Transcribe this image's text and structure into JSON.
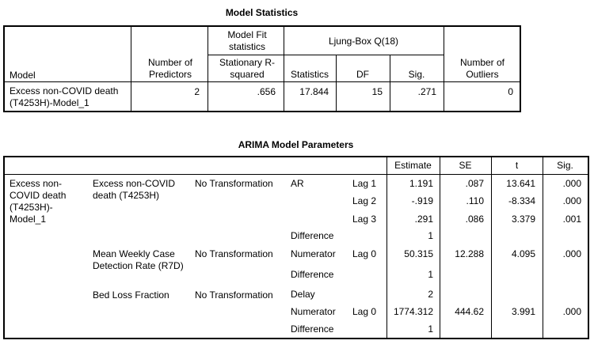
{
  "model_statistics": {
    "title": "Model Statistics",
    "headers": {
      "model": "Model",
      "predictors": "Number of Predictors",
      "fit_group": "Model Fit statistics",
      "r2": "Stationary R-squared",
      "ljung_group": "Ljung-Box Q(18)",
      "statistics": "Statistics",
      "df": "DF",
      "sig": "Sig.",
      "outliers": "Number of Outliers"
    },
    "row": {
      "model": "Excess non-COVID death (T4253H)-Model_1",
      "predictors": "2",
      "r2": ".656",
      "statistics": "17.844",
      "df": "15",
      "sig": ".271",
      "outliers": "0"
    }
  },
  "arima": {
    "title": "ARIMA Model Parameters",
    "headers": {
      "estimate": "Estimate",
      "se": "SE",
      "t": "t",
      "sig": "Sig."
    },
    "model": "Excess non-COVID death (T4253H)-Model_1",
    "vars": [
      {
        "name": "Excess non-COVID death (T4253H)",
        "transform": "No Transformation"
      },
      {
        "name": "Mean Weekly Case Detection Rate (R7D)",
        "transform": "No Transformation"
      },
      {
        "name": "Bed Loss Fraction",
        "transform": "No Transformation"
      }
    ],
    "rows": [
      {
        "type": "AR",
        "lag": "Lag 1",
        "estimate": "1.191",
        "se": ".087",
        "t": "13.641",
        "sig": ".000"
      },
      {
        "type": "",
        "lag": "Lag 2",
        "estimate": "-.919",
        "se": ".110",
        "t": "-8.334",
        "sig": ".000"
      },
      {
        "type": "",
        "lag": "Lag 3",
        "estimate": ".291",
        "se": ".086",
        "t": "3.379",
        "sig": ".001"
      },
      {
        "type": "Difference",
        "lag": "",
        "estimate": "1",
        "se": "",
        "t": "",
        "sig": ""
      },
      {
        "type": "Numerator",
        "lag": "Lag 0",
        "estimate": "50.315",
        "se": "12.288",
        "t": "4.095",
        "sig": ".000"
      },
      {
        "type": "Difference",
        "lag": "",
        "estimate": "1",
        "se": "",
        "t": "",
        "sig": ""
      },
      {
        "type": "Delay",
        "lag": "",
        "estimate": "2",
        "se": "",
        "t": "",
        "sig": ""
      },
      {
        "type": "Numerator",
        "lag": "Lag 0",
        "estimate": "1774.312",
        "se": "444.62",
        "t": "3.991",
        "sig": ".000"
      },
      {
        "type": "Difference",
        "lag": "",
        "estimate": "1",
        "se": "",
        "t": "",
        "sig": ""
      }
    ]
  }
}
